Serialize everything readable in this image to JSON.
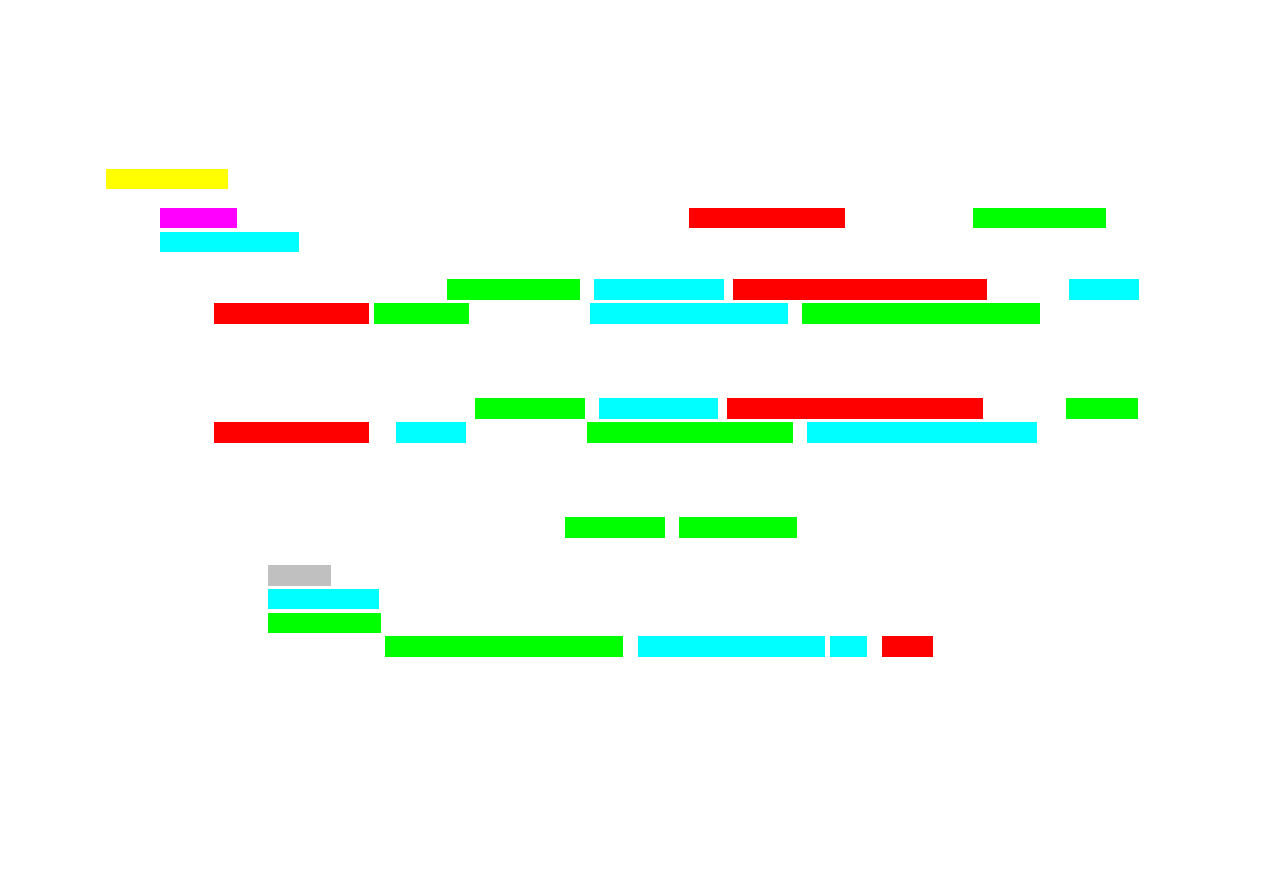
{
  "colors": {
    "yellow": "#ffff00",
    "magenta": "#ff00ff",
    "red": "#ff0000",
    "green": "#00ff00",
    "cyan": "#00ffff",
    "gray": "#c0c0c0",
    "background": "#ffffff"
  }
}
